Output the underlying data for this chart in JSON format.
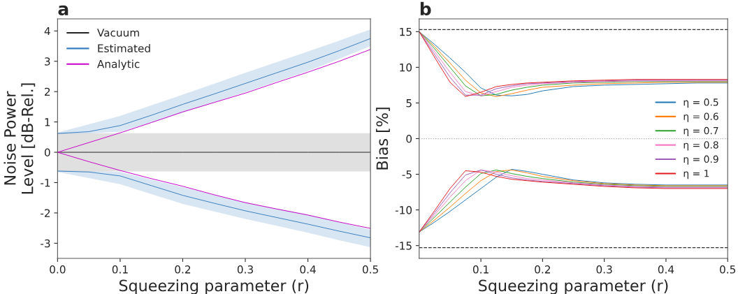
{
  "chart_data": [
    {
      "type": "line",
      "title": "a",
      "xlabel": "Squeezing parameter (r)",
      "ylabel": "Noise Power\nLevel [dB-Rel.]",
      "x": [
        0,
        0.05,
        0.1,
        0.15,
        0.2,
        0.25,
        0.3,
        0.35,
        0.4,
        0.45,
        0.5
      ],
      "xlim": [
        0,
        0.5
      ],
      "ylim": [
        -3.5,
        4.4
      ],
      "xticks": [
        {
          "value": 0,
          "label": "0.0"
        },
        0.1,
        0.2,
        0.3,
        0.4,
        0.5
      ],
      "yticks": [
        -3,
        -2,
        -1,
        0,
        1,
        2,
        3,
        4
      ],
      "bands": [
        {
          "axis": "y",
          "from": -0.63,
          "to": 0.63,
          "color": "#e0e0e0"
        }
      ],
      "legend": "top left",
      "grid": false,
      "series": [
        {
          "name": "Vacuum",
          "color": "#222222",
          "values": [
            0,
            0,
            0,
            0,
            0,
            0,
            0,
            0,
            0,
            0,
            0
          ]
        },
        {
          "name": "Estimated",
          "color": "#3a7ebf",
          "values": [
            0.62,
            0.68,
            0.88,
            1.22,
            1.58,
            1.92,
            2.27,
            2.62,
            2.97,
            3.35,
            3.75
          ],
          "lower": [
            0.6,
            0.62,
            0.68,
            0.98,
            1.3,
            1.64,
            1.98,
            2.33,
            2.68,
            3.08,
            3.5
          ],
          "upper": [
            0.65,
            0.92,
            1.2,
            1.55,
            1.9,
            2.26,
            2.62,
            2.97,
            3.32,
            3.68,
            4.05
          ]
        },
        {
          "name": "Analytic",
          "color": "#c800c8",
          "values": [
            0,
            0.32,
            0.64,
            0.98,
            1.33,
            1.64,
            1.95,
            2.3,
            2.64,
            3.0,
            3.39
          ]
        },
        {
          "color": "#3a7ebf",
          "values": [
            -0.62,
            -0.65,
            -0.78,
            -1.1,
            -1.42,
            -1.68,
            -1.93,
            -2.15,
            -2.37,
            -2.6,
            -2.82
          ],
          "lower": [
            -0.65,
            -0.85,
            -1.05,
            -1.38,
            -1.7,
            -1.95,
            -2.2,
            -2.42,
            -2.65,
            -2.9,
            -3.13
          ],
          "upper": [
            -0.6,
            -0.62,
            -0.65,
            -0.9,
            -1.15,
            -1.4,
            -1.65,
            -1.85,
            -2.05,
            -2.3,
            -2.55
          ]
        },
        {
          "color": "#c800c8",
          "values": [
            0,
            -0.31,
            -0.6,
            -0.87,
            -1.12,
            -1.4,
            -1.66,
            -1.87,
            -2.07,
            -2.3,
            -2.51
          ]
        }
      ]
    },
    {
      "type": "line",
      "title": "b",
      "xlabel": "Squeezing parameter (r)",
      "ylabel": "Bias [%]",
      "x": [
        0,
        0.025,
        0.05,
        0.075,
        0.1,
        0.125,
        0.15,
        0.175,
        0.2,
        0.25,
        0.3,
        0.35,
        0.4,
        0.45,
        0.5
      ],
      "xlim": [
        0,
        0.5
      ],
      "ylim": [
        -16.8,
        16.8
      ],
      "xticks": [
        0.1,
        0.2,
        0.3,
        0.4,
        0.5
      ],
      "yticks": [
        -15,
        -10,
        -5,
        0,
        5,
        10,
        15
      ],
      "ref_lines": [
        {
          "axis": "y",
          "value": 15.3,
          "color": "#333333",
          "line_style": "dashed"
        },
        {
          "axis": "y",
          "value": -15.3,
          "color": "#333333",
          "line_style": "dashed"
        },
        {
          "axis": "y",
          "value": 0,
          "color": "#aaaaaa",
          "line_style": "dotted"
        }
      ],
      "legend": "right",
      "grid": false,
      "series": [
        {
          "name": "η = 0.5",
          "color": "#1f77b4",
          "values": [
            15,
            13.2,
            11.3,
            9.3,
            7.1,
            6.1,
            6.0,
            6.2,
            6.7,
            7.3,
            7.5,
            7.6,
            7.7,
            7.8,
            7.8
          ]
        },
        {
          "name": "η = 0.6",
          "color": "#ff7f0e",
          "values": [
            15,
            12.9,
            10.6,
            8.2,
            6.4,
            5.9,
            6.3,
            6.8,
            7.2,
            7.5,
            7.7,
            7.8,
            7.9,
            7.9,
            7.9
          ]
        },
        {
          "name": "η = 0.7",
          "color": "#2ca02c",
          "values": [
            15,
            12.6,
            10.0,
            7.4,
            6.0,
            6.2,
            6.8,
            7.2,
            7.5,
            7.8,
            7.9,
            8.0,
            8.0,
            8.0,
            8.0
          ]
        },
        {
          "name": "η = 0.8",
          "color": "#f47fc8",
          "values": [
            15,
            12.2,
            9.3,
            6.6,
            6.0,
            6.6,
            7.2,
            7.5,
            7.7,
            7.9,
            8.0,
            8.1,
            8.1,
            8.1,
            8.1
          ]
        },
        {
          "name": "η = 0.9",
          "color": "#a05cb8",
          "values": [
            15,
            11.8,
            8.6,
            6.1,
            6.1,
            7.0,
            7.4,
            7.7,
            7.8,
            8.0,
            8.1,
            8.2,
            8.2,
            8.2,
            8.2
          ]
        },
        {
          "name": "η = 1",
          "color": "#e41a1c",
          "values": [
            15,
            11.4,
            7.9,
            5.9,
            6.5,
            7.3,
            7.6,
            7.8,
            7.9,
            8.1,
            8.2,
            8.3,
            8.3,
            8.3,
            8.3
          ]
        },
        {
          "color": "#1f77b4",
          "values": [
            -13.1,
            -11.7,
            -10.2,
            -8.6,
            -7.0,
            -5.4,
            -4.3,
            -4.6,
            -5.0,
            -5.8,
            -6.2,
            -6.4,
            -6.5,
            -6.5,
            -6.5
          ]
        },
        {
          "color": "#ff7f0e",
          "values": [
            -13.1,
            -11.4,
            -9.6,
            -7.7,
            -5.9,
            -4.6,
            -4.4,
            -4.8,
            -5.3,
            -5.9,
            -6.3,
            -6.5,
            -6.6,
            -6.6,
            -6.6
          ]
        },
        {
          "color": "#2ca02c",
          "values": [
            -13.1,
            -11.0,
            -8.9,
            -6.8,
            -4.9,
            -4.4,
            -4.9,
            -5.3,
            -5.6,
            -6.1,
            -6.4,
            -6.6,
            -6.7,
            -6.7,
            -6.7
          ]
        },
        {
          "color": "#f47fc8",
          "values": [
            -13.1,
            -10.7,
            -8.2,
            -5.9,
            -4.4,
            -4.7,
            -5.2,
            -5.6,
            -5.8,
            -6.2,
            -6.5,
            -6.7,
            -6.8,
            -6.8,
            -6.8
          ]
        },
        {
          "color": "#a05cb8",
          "values": [
            -13.1,
            -10.4,
            -7.6,
            -5.1,
            -4.4,
            -5.0,
            -5.5,
            -5.8,
            -6.0,
            -6.3,
            -6.6,
            -6.8,
            -6.9,
            -6.9,
            -6.9
          ]
        },
        {
          "color": "#e41a1c",
          "values": [
            -13.1,
            -10.1,
            -7.0,
            -4.5,
            -4.7,
            -5.3,
            -5.7,
            -5.9,
            -6.1,
            -6.4,
            -6.7,
            -6.9,
            -7.0,
            -7.0,
            -7.0
          ]
        }
      ]
    }
  ]
}
